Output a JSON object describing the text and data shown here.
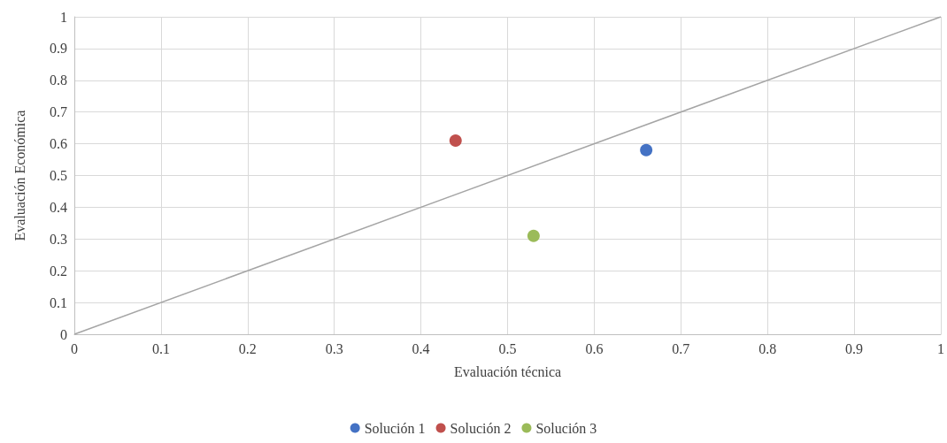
{
  "chart_data": {
    "type": "scatter",
    "xlabel": "Evaluación técnica",
    "ylabel": "Evaluación Económica",
    "series": [
      {
        "name": "Solución 1",
        "color": "#4472c4",
        "x": [
          0.66
        ],
        "values": [
          0.58
        ]
      },
      {
        "name": "Solución 2",
        "color": "#c0504d",
        "x": [
          0.44
        ],
        "values": [
          0.61
        ]
      },
      {
        "name": "Solución 3",
        "color": "#9bbb59",
        "x": [
          0.53
        ],
        "values": [
          0.31
        ]
      },
      {
        "type": "line",
        "color": "#a5a5a5",
        "x": [
          0,
          1
        ],
        "values": [
          0,
          1
        ],
        "marker": "none"
      }
    ],
    "xlim": [
      0,
      1
    ],
    "xticks": [
      0,
      0.1,
      0.2,
      0.3,
      0.4,
      0.5,
      0.6,
      0.7,
      0.8,
      0.9,
      1
    ],
    "ylim": [
      0,
      1
    ],
    "yticks": [
      0,
      0.1,
      0.2,
      0.3,
      0.4,
      0.5,
      0.6,
      0.7,
      0.8,
      0.9,
      1
    ],
    "grid": true,
    "legend": "bottom",
    "marker": "circle"
  }
}
